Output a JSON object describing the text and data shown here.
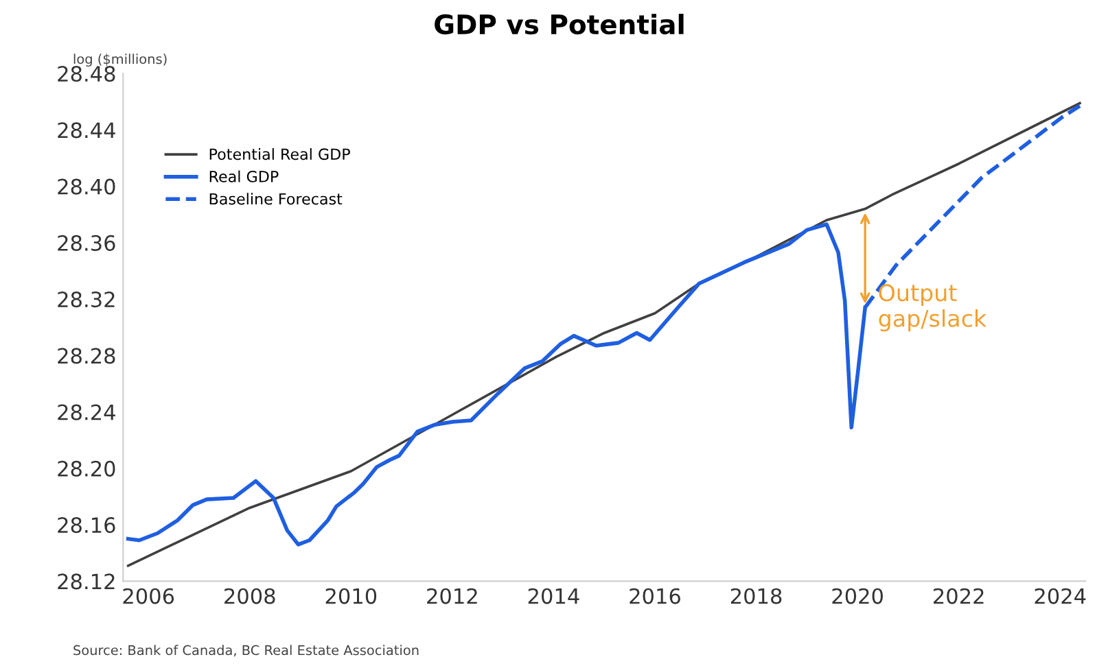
{
  "chart_data": {
    "type": "line",
    "title": "GDP vs Potential",
    "ylabel": "log ($millions)",
    "xlim": [
      2005.5,
      2024.5
    ],
    "xticks": [
      2006,
      2008,
      2010,
      2012,
      2014,
      2016,
      2018,
      2020,
      2022,
      2024
    ],
    "ylim": [
      28.12,
      28.48
    ],
    "yticks": [
      28.12,
      28.16,
      {
        "value": 28.2,
        "label": "28.20"
      },
      28.24,
      28.28,
      28.32,
      28.36,
      {
        "value": 28.4,
        "label": "28.40"
      },
      28.44,
      28.48
    ],
    "grid": false,
    "legend": "top left",
    "series": [
      {
        "name": "Potential Real GDP",
        "color": "#404040",
        "line_style": "solid",
        "x": [
          2005.6,
          2008,
          2010,
          2012,
          2014.05,
          2015,
          2016,
          2016.87,
          2018,
          2019.39,
          2020.15,
          2020.68,
          2022,
          2024.39
        ],
        "values": [
          28.131,
          28.172,
          28.198,
          28.238,
          28.279,
          28.296,
          28.31,
          28.331,
          28.35,
          28.376,
          28.384,
          28.394,
          28.416,
          28.459
        ]
      },
      {
        "name": "Real GDP",
        "color": "#1f5fe0",
        "line_style": "solid",
        "x": [
          2005.6,
          2005.82,
          2006.18,
          2006.57,
          2006.88,
          2007.15,
          2007.68,
          2008.12,
          2008.47,
          2008.74,
          2008.96,
          2009.18,
          2009.54,
          2009.71,
          2010.07,
          2010.24,
          2010.51,
          2010.77,
          2010.95,
          2011.31,
          2011.66,
          2012.01,
          2012.37,
          2012.9,
          2013.43,
          2013.78,
          2014.13,
          2014.4,
          2014.84,
          2015.28,
          2015.64,
          2015.9,
          2016.43,
          2016.87,
          2017.76,
          2018.64,
          2019.0,
          2019.39,
          2019.62,
          2019.75,
          2019.88,
          2020.01,
          2020.15
        ],
        "values": [
          28.15,
          28.149,
          28.154,
          28.163,
          28.174,
          28.178,
          28.179,
          28.191,
          28.179,
          28.156,
          28.146,
          28.149,
          28.163,
          28.173,
          28.183,
          28.189,
          28.201,
          28.206,
          28.209,
          28.226,
          28.231,
          28.233,
          28.234,
          28.253,
          28.271,
          28.276,
          28.288,
          28.294,
          28.287,
          28.289,
          28.296,
          28.291,
          28.313,
          28.331,
          28.346,
          28.359,
          28.369,
          28.373,
          28.353,
          28.319,
          28.229,
          28.269,
          28.314
        ]
      },
      {
        "name": "Baseline Forecast",
        "color": "#1f5fe0",
        "line_style": "dashed",
        "x": [
          2020.15,
          2020.76,
          2022.45,
          2024.04,
          2024.39
        ],
        "values": [
          28.314,
          28.344,
          28.406,
          28.449,
          28.457
        ]
      }
    ],
    "annotations": [
      {
        "text": "Output\ngap/slack",
        "x": 2020.15,
        "y": 28.314
      },
      "Source: Bank of Canada, BC Real Estate Association"
    ]
  }
}
